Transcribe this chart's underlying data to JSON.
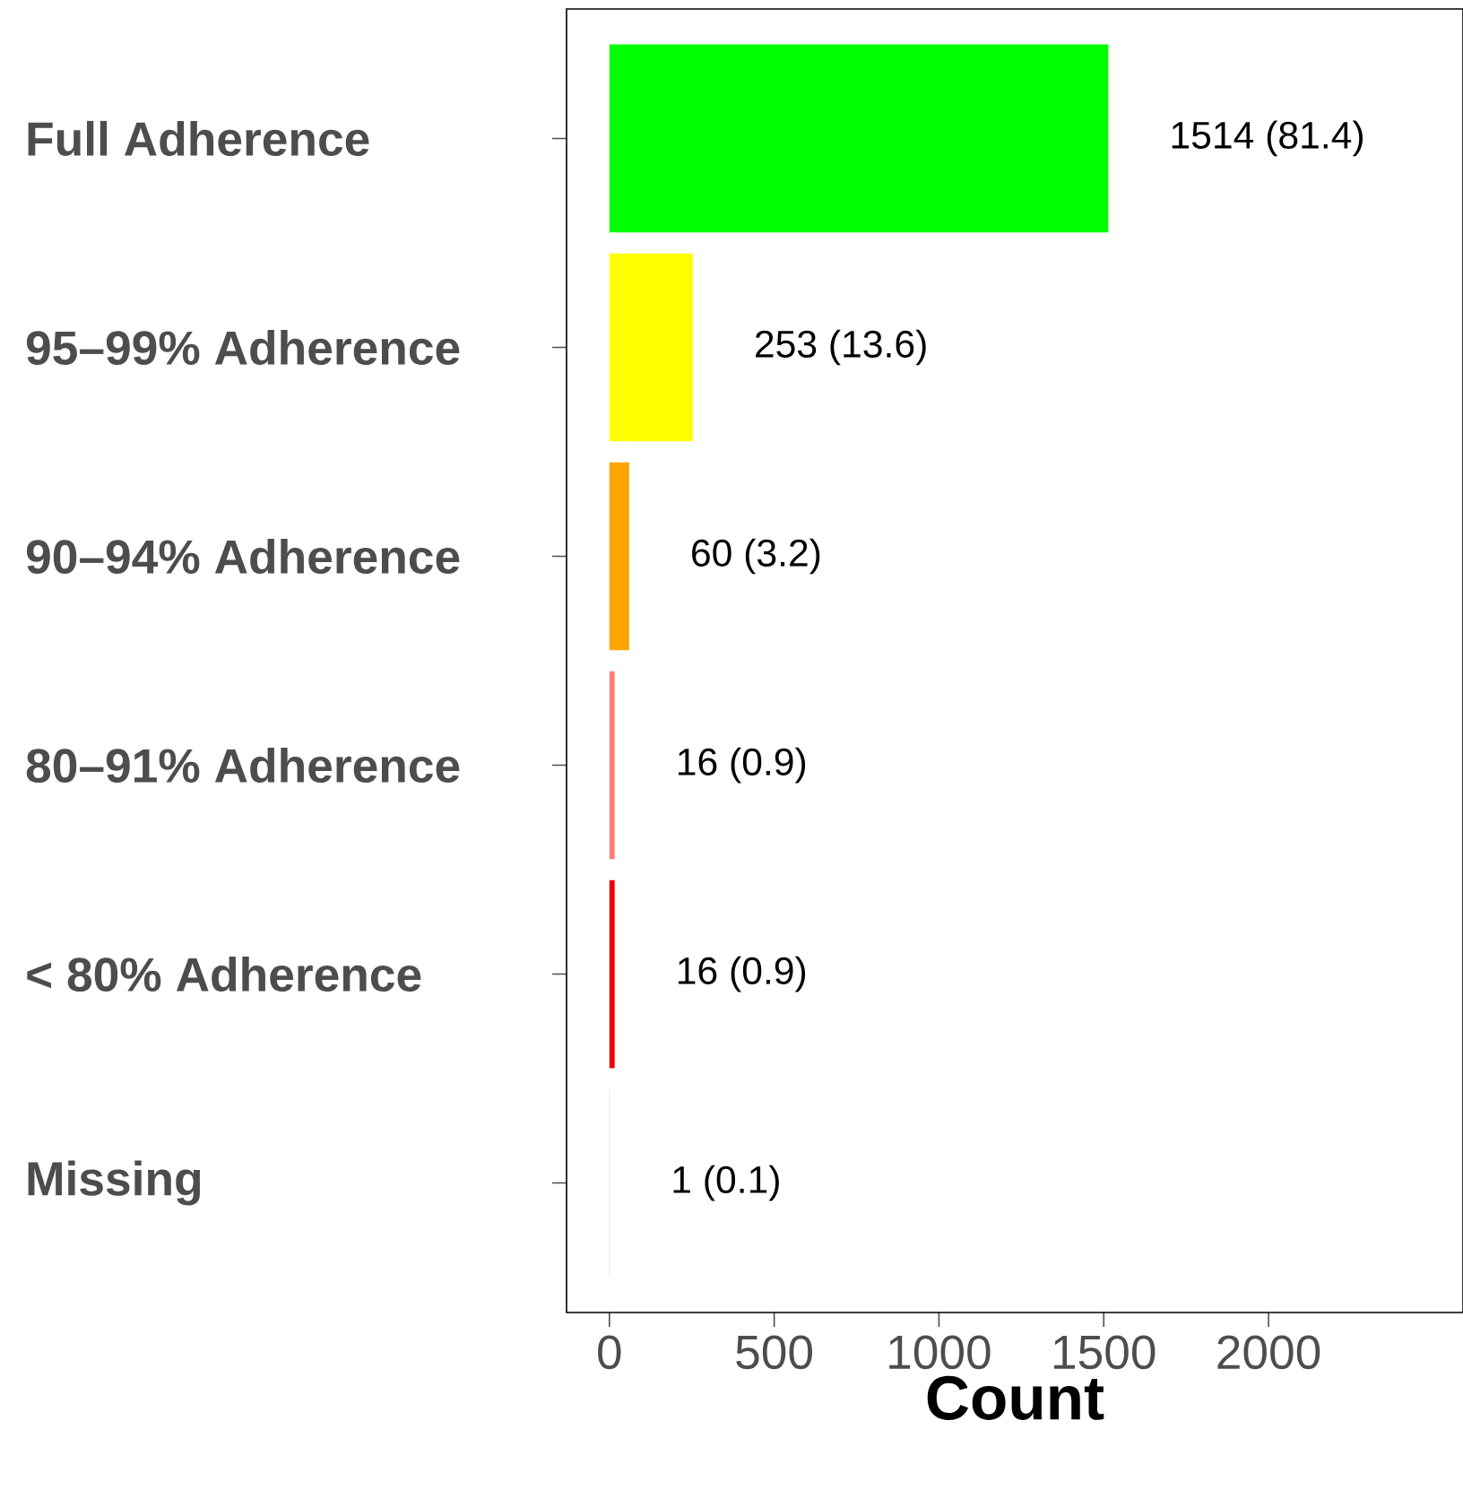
{
  "chart_data": {
    "type": "bar",
    "orientation": "horizontal",
    "categories": [
      "Full Adherence",
      "95–99% Adherence",
      "90–94% Adherence",
      "80–91% Adherence",
      "< 80% Adherence",
      "Missing"
    ],
    "values": [
      1514,
      253,
      60,
      16,
      16,
      1
    ],
    "colors": [
      "#00ff00",
      "#ffff00",
      "#ffa500",
      "#fa8072",
      "#ee0000",
      "#bebebe"
    ],
    "value_labels": [
      "1514 (81.4)",
      "253 (13.6)",
      "60 (3.2)",
      "16 (0.9)",
      "16 (0.9)",
      "1 (0.1)"
    ],
    "xlabel": "Count",
    "xlim": [
      -130,
      2590
    ],
    "xticks": [
      0,
      500,
      1000,
      1500,
      2000
    ]
  }
}
